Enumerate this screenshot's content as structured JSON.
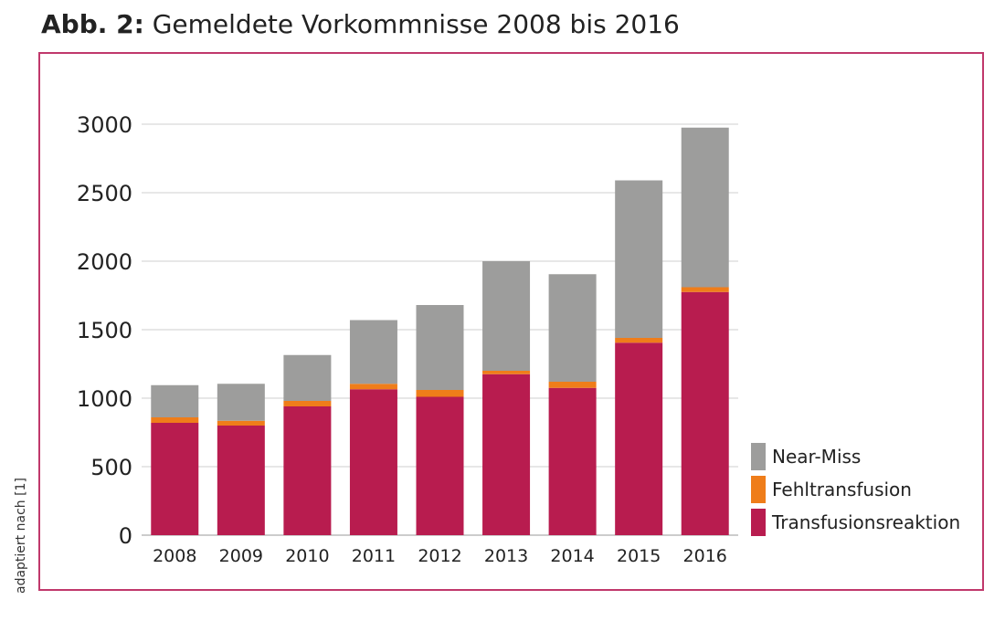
{
  "heading": {
    "lead": "Abb. 2:",
    "rest": " Gemeldete Vorkommnisse 2008 bis 2016"
  },
  "side_note": "adaptiert nach [1]",
  "colors": {
    "frame": "#c0386b",
    "near_miss": "#9d9d9c",
    "fehltransfusion": "#ef7d1a",
    "transfusionsreaktion": "#b81c4f",
    "grid": "#cfcfcf"
  },
  "chart_data": {
    "type": "bar",
    "stacked": true,
    "title": "",
    "xlabel": "",
    "ylabel": "",
    "ylim": [
      0,
      3000
    ],
    "yticks": [
      0,
      500,
      1000,
      1500,
      2000,
      2500,
      3000
    ],
    "grid": true,
    "legend_position": "right",
    "categories": [
      "2008",
      "2009",
      "2010",
      "2011",
      "2012",
      "2013",
      "2014",
      "2015",
      "2016"
    ],
    "series": [
      {
        "name": "Transfusionsreaktion",
        "color": "#b81c4f",
        "values": [
          820,
          800,
          940,
          1065,
          1010,
          1175,
          1075,
          1405,
          1775
        ]
      },
      {
        "name": "Fehltransfusion",
        "color": "#ef7d1a",
        "values": [
          40,
          35,
          40,
          40,
          50,
          25,
          45,
          35,
          35
        ]
      },
      {
        "name": "Near-Miss",
        "color": "#9d9d9c",
        "values": [
          235,
          270,
          335,
          465,
          620,
          800,
          785,
          1150,
          1165
        ]
      }
    ]
  }
}
